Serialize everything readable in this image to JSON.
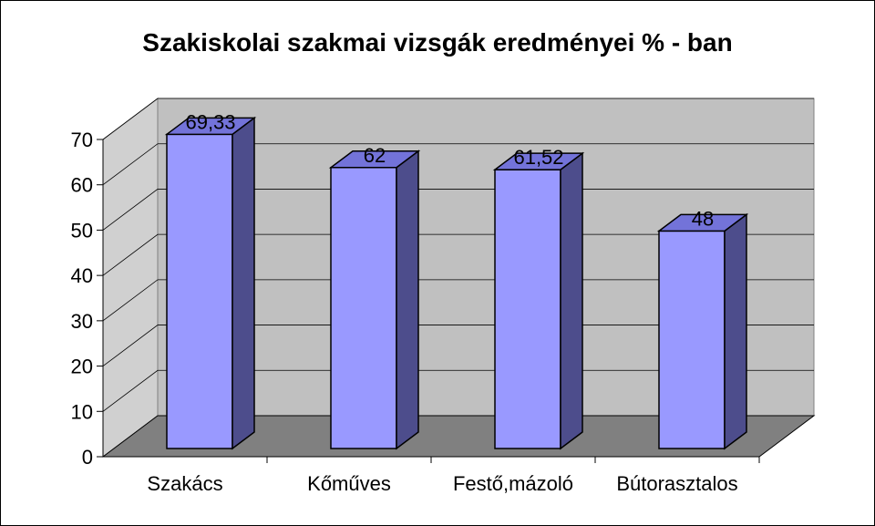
{
  "chart_data": {
    "type": "bar",
    "title": "Szakiskolai szakmai vizsgák eredményei %  - ban",
    "xlabel": "",
    "ylabel": "",
    "categories": [
      "Szakács",
      "Kőműves",
      "Festő,mázoló",
      "Bútorasztalos"
    ],
    "values": [
      69.33,
      62,
      61.52,
      48
    ],
    "data_labels": [
      "69,33",
      "62",
      "61,52",
      "48"
    ],
    "ylim": [
      0,
      70
    ],
    "yticks": [
      "0",
      "10",
      "20",
      "30",
      "40",
      "50",
      "60",
      "70"
    ],
    "grid": true,
    "legend": "none",
    "style": "3d-column"
  },
  "colors": {
    "bar_front": "#9999FF",
    "bar_top": "#7373D9",
    "bar_side": "#4D4D8C",
    "back_wall": "#C0C0C0",
    "side_wall": "#D0D0D0",
    "floor": "#808080",
    "gridline": "#000000"
  }
}
